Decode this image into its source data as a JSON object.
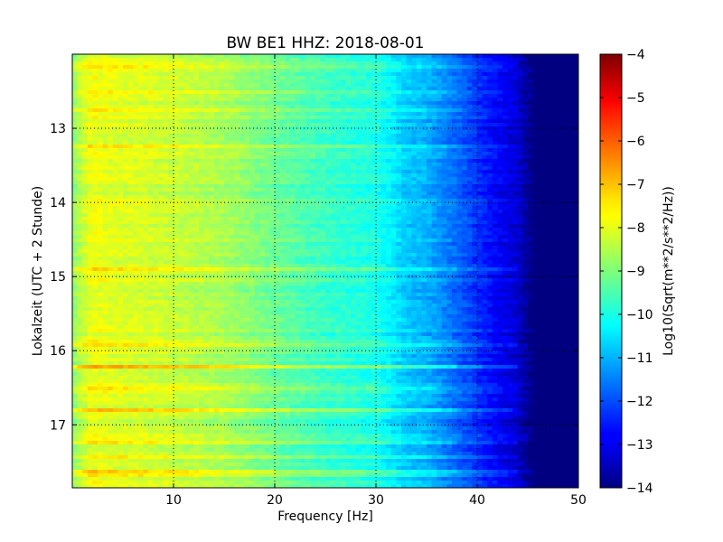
{
  "chart_data": {
    "type": "heatmap",
    "title": "BW BE1 HHZ: 2018-08-01",
    "xlabel": "Frequency [Hz]",
    "ylabel": "Lokalzeit (UTC + 2 Stunde)",
    "colorbar_label": "Log10(Sqrt(m**2/s**2/Hz))",
    "colormap": "jet",
    "xlim": [
      0,
      50
    ],
    "ylim": [
      12.0,
      17.85
    ],
    "y_inverted": true,
    "clim": [
      -14,
      -4
    ],
    "grid": true,
    "x_ticks": [
      10,
      20,
      30,
      40,
      50
    ],
    "x_tick_labels": [
      "10",
      "20",
      "30",
      "40",
      "50"
    ],
    "y_ticks": [
      13,
      14,
      15,
      16,
      17
    ],
    "y_tick_labels": [
      "13",
      "14",
      "15",
      "16",
      "17"
    ],
    "colorbar_ticks": [
      -4,
      -5,
      -6,
      -7,
      -8,
      -9,
      -10,
      -11,
      -12,
      -13,
      -14
    ],
    "colorbar_tick_labels": [
      "−4",
      "−5",
      "−6",
      "−7",
      "−8",
      "−9",
      "−10",
      "−11",
      "−12",
      "−13",
      "−14"
    ],
    "spectrum_profile": {
      "freq": [
        0,
        1,
        2,
        3,
        5,
        8,
        10,
        15,
        20,
        25,
        28,
        30,
        32,
        33,
        35,
        37,
        39,
        40,
        42,
        44,
        45,
        46,
        50
      ],
      "value": [
        -8.9,
        -8.3,
        -7.9,
        -8.0,
        -8.1,
        -8.2,
        -8.3,
        -8.6,
        -9.2,
        -9.7,
        -9.9,
        -10.0,
        -10.5,
        -10.8,
        -11.0,
        -11.5,
        -12.0,
        -12.3,
        -12.8,
        -13.2,
        -13.8,
        -14.0,
        -14.0
      ]
    },
    "loud_time_bands": [
      {
        "hour": 12.15,
        "delta": 0.5
      },
      {
        "hour": 12.5,
        "delta": 0.45
      },
      {
        "hour": 12.75,
        "delta": 0.5
      },
      {
        "hour": 13.25,
        "delta": 0.45
      },
      {
        "hour": 14.9,
        "delta": 0.4
      },
      {
        "hour": 15.9,
        "delta": 0.5
      },
      {
        "hour": 16.2,
        "delta": 0.9
      },
      {
        "hour": 16.5,
        "delta": 0.7
      },
      {
        "hour": 16.8,
        "delta": 0.9
      },
      {
        "hour": 17.25,
        "delta": 0.7
      },
      {
        "hour": 17.45,
        "delta": 0.6
      },
      {
        "hour": 17.65,
        "delta": 0.6
      }
    ]
  }
}
